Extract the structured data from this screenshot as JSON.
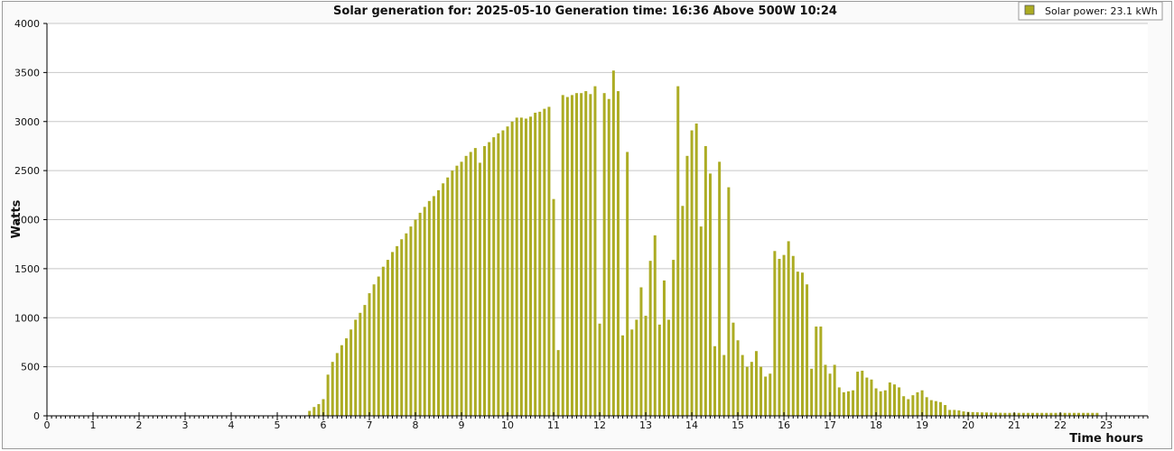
{
  "chart_data": {
    "type": "bar",
    "title": "Solar generation for: 2025-05-10 Generation time: 16:36 Above 500W 10:24",
    "xlabel": "Time hours",
    "ylabel": "Watts",
    "xlim": [
      0,
      23.9
    ],
    "ylim": [
      0,
      4000
    ],
    "x_ticks": [
      0,
      1,
      2,
      3,
      4,
      5,
      6,
      7,
      8,
      9,
      10,
      11,
      12,
      13,
      14,
      15,
      16,
      17,
      18,
      19,
      20,
      21,
      22,
      23
    ],
    "y_ticks": [
      0,
      500,
      1000,
      1500,
      2000,
      2500,
      3000,
      3500,
      4000
    ],
    "grid": true,
    "legend_placement": "top-right",
    "color": "#acac24",
    "series": [
      {
        "name": "Solar power: 23.1 kWh",
        "start_hour": 5.7,
        "step_hours": 0.1,
        "values": [
          50,
          90,
          120,
          170,
          420,
          550,
          640,
          720,
          790,
          880,
          980,
          1050,
          1130,
          1250,
          1340,
          1420,
          1520,
          1590,
          1670,
          1730,
          1800,
          1860,
          1930,
          2000,
          2070,
          2130,
          2190,
          2240,
          2300,
          2370,
          2430,
          2500,
          2550,
          2590,
          2650,
          2690,
          2730,
          2580,
          2750,
          2790,
          2840,
          2880,
          2910,
          2950,
          3000,
          3040,
          3040,
          3030,
          3050,
          3090,
          3100,
          3130,
          3150,
          2210,
          670,
          3270,
          3250,
          3270,
          3290,
          3290,
          3310,
          3280,
          3360,
          940,
          3290,
          3230,
          3520,
          3310,
          820,
          2690,
          880,
          980,
          1310,
          1020,
          1580,
          1840,
          930,
          1380,
          980,
          1590,
          3360,
          2140,
          2650,
          2910,
          2980,
          1930,
          2750,
          2470,
          710,
          2590,
          620,
          2330,
          950,
          770,
          620,
          500,
          550,
          660,
          500,
          400,
          430,
          1680,
          1600,
          1640,
          1780,
          1630,
          1470,
          1460,
          1340,
          480,
          910,
          910,
          520,
          430,
          520,
          290,
          240,
          250,
          260,
          450,
          460,
          390,
          370,
          280,
          250,
          260,
          340,
          320,
          290,
          200,
          170,
          210,
          240,
          260,
          190,
          160,
          150,
          140,
          110,
          60,
          60,
          55,
          45,
          40,
          38,
          36,
          35,
          34,
          33,
          32,
          31,
          30,
          30,
          30,
          30,
          30,
          30,
          30,
          30,
          30,
          30,
          30,
          30,
          30,
          30,
          30,
          30,
          30,
          30,
          30,
          30,
          30
        ]
      }
    ]
  }
}
